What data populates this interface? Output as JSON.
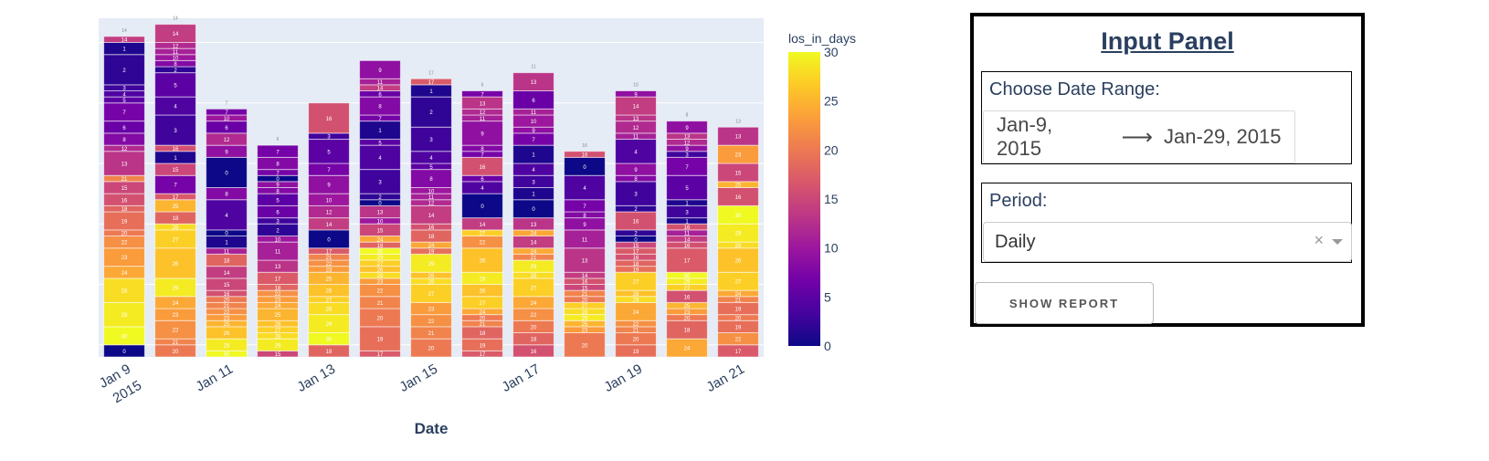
{
  "chart_data": {
    "type": "bar",
    "barmode": "stack",
    "title": "",
    "xlabel": "Date",
    "ylabel": "",
    "y_ticks_shown": false,
    "ylim": [
      0,
      56
    ],
    "grid": true,
    "colorbar": {
      "title": "los_in_days",
      "range": [
        0,
        30
      ],
      "ticks": [
        "0",
        "5",
        "10",
        "15",
        "20",
        "25",
        "30"
      ],
      "colorscale": "Plasma",
      "placement": "right"
    },
    "x_tick_labels": [
      {
        "label": "Jan 9",
        "sub": "2015",
        "index": 0
      },
      {
        "label": "Jan 11",
        "sub": "",
        "index": 2
      },
      {
        "label": "Jan 13",
        "sub": "",
        "index": 4
      },
      {
        "label": "Jan 15",
        "sub": "",
        "index": 6
      },
      {
        "label": "Jan 17",
        "sub": "",
        "index": 8
      },
      {
        "label": "Jan 19",
        "sub": "",
        "index": 10
      },
      {
        "label": "Jan 21",
        "sub": "",
        "index": 12
      }
    ],
    "categories": [
      "Jan 9",
      "Jan 10",
      "Jan 11",
      "Jan 12",
      "Jan 13",
      "Jan 14",
      "Jan 15",
      "Jan 16",
      "Jan 17",
      "Jan 18",
      "Jan 19",
      "Jan 20",
      "Jan 21"
    ],
    "bar_top_labels": [
      "14",
      "14",
      "7",
      "6",
      "",
      "",
      "17",
      "6",
      "11",
      "16",
      "10",
      "8",
      "13"
    ],
    "bars": [
      {
        "date": "Jan 9",
        "segments": [
          [
            0,
            2
          ],
          [
            30,
            3
          ],
          [
            29,
            4
          ],
          [
            28,
            4
          ],
          [
            24,
            2
          ],
          [
            23,
            3
          ],
          [
            22,
            2
          ],
          [
            20,
            1
          ],
          [
            19,
            3
          ],
          [
            18,
            1
          ],
          [
            16,
            2
          ],
          [
            15,
            2
          ],
          [
            21,
            1
          ],
          [
            13,
            4
          ],
          [
            12,
            1
          ],
          [
            8,
            2
          ],
          [
            6,
            2
          ],
          [
            7,
            3
          ],
          [
            5,
            1
          ],
          [
            4,
            1
          ],
          [
            3,
            1
          ],
          [
            2,
            5
          ],
          [
            1,
            2
          ],
          [
            14,
            1
          ]
        ]
      },
      {
        "date": "Jan 10",
        "segments": [
          [
            20,
            2
          ],
          [
            21,
            1
          ],
          [
            22,
            3
          ],
          [
            23,
            2
          ],
          [
            24,
            2
          ],
          [
            29,
            3
          ],
          [
            26,
            5
          ],
          [
            27,
            3
          ],
          [
            28,
            1
          ],
          [
            18,
            2
          ],
          [
            25,
            2
          ],
          [
            17,
            1
          ],
          [
            7,
            3
          ],
          [
            15,
            2
          ],
          [
            1,
            2
          ],
          [
            16,
            1
          ],
          [
            3,
            5
          ],
          [
            4,
            3
          ],
          [
            5,
            4
          ],
          [
            2,
            1
          ],
          [
            8,
            1
          ],
          [
            10,
            1
          ],
          [
            11,
            1
          ],
          [
            12,
            1
          ],
          [
            14,
            3
          ]
        ]
      },
      {
        "date": "Jan 11",
        "segments": [
          [
            30,
            1
          ],
          [
            29,
            2
          ],
          [
            26,
            2
          ],
          [
            25,
            1
          ],
          [
            23,
            1
          ],
          [
            22,
            1
          ],
          [
            21,
            1
          ],
          [
            20,
            1
          ],
          [
            16,
            1
          ],
          [
            15,
            2
          ],
          [
            14,
            2
          ],
          [
            18,
            2
          ],
          [
            11,
            1
          ],
          [
            1,
            2
          ],
          [
            0,
            1
          ],
          [
            4,
            5
          ],
          [
            8,
            2
          ],
          [
            0,
            5
          ],
          [
            9,
            2
          ],
          [
            12,
            2
          ],
          [
            6,
            2
          ],
          [
            10,
            1
          ],
          [
            7,
            1
          ]
        ]
      },
      {
        "date": "Jan 12",
        "segments": [
          [
            15,
            1
          ],
          [
            29,
            2
          ],
          [
            28,
            1
          ],
          [
            27,
            1
          ],
          [
            26,
            1
          ],
          [
            25,
            2
          ],
          [
            24,
            1
          ],
          [
            23,
            1
          ],
          [
            22,
            1
          ],
          [
            18,
            1
          ],
          [
            17,
            2
          ],
          [
            13,
            2
          ],
          [
            11,
            3
          ],
          [
            10,
            1
          ],
          [
            2,
            2
          ],
          [
            3,
            1
          ],
          [
            6,
            2
          ],
          [
            5,
            2
          ],
          [
            8,
            1
          ],
          [
            9,
            1
          ],
          [
            0,
            1
          ],
          [
            7,
            1
          ],
          [
            8,
            2
          ],
          [
            7,
            2
          ]
        ]
      },
      {
        "date": "Jan 13",
        "segments": [
          [
            18,
            2
          ],
          [
            30,
            2
          ],
          [
            29,
            3
          ],
          [
            28,
            2
          ],
          [
            27,
            1
          ],
          [
            26,
            2
          ],
          [
            25,
            2
          ],
          [
            23,
            1
          ],
          [
            22,
            1
          ],
          [
            21,
            1
          ],
          [
            17,
            1
          ],
          [
            0,
            3
          ],
          [
            14,
            2
          ],
          [
            12,
            2
          ],
          [
            10,
            2
          ],
          [
            9,
            3
          ],
          [
            7,
            2
          ],
          [
            5,
            4
          ],
          [
            3,
            1
          ],
          [
            16,
            5
          ]
        ]
      },
      {
        "date": "Jan 14",
        "segments": [
          [
            17,
            1
          ],
          [
            19,
            4
          ],
          [
            20,
            3
          ],
          [
            21,
            2
          ],
          [
            22,
            2
          ],
          [
            23,
            1
          ],
          [
            28,
            1
          ],
          [
            26,
            1
          ],
          [
            27,
            1
          ],
          [
            29,
            1
          ],
          [
            30,
            1
          ],
          [
            18,
            1
          ],
          [
            24,
            1
          ],
          [
            15,
            2
          ],
          [
            10,
            1
          ],
          [
            13,
            2
          ],
          [
            0,
            1
          ],
          [
            2,
            1
          ],
          [
            3,
            4
          ],
          [
            4,
            4
          ],
          [
            5,
            1
          ],
          [
            1,
            3
          ],
          [
            7,
            1
          ],
          [
            8,
            3
          ],
          [
            6,
            1
          ],
          [
            14,
            1
          ],
          [
            11,
            1
          ],
          [
            9,
            3
          ]
        ]
      },
      {
        "date": "Jan 15",
        "segments": [
          [
            20,
            3
          ],
          [
            21,
            2
          ],
          [
            22,
            2
          ],
          [
            23,
            2
          ],
          [
            27,
            3
          ],
          [
            28,
            1
          ],
          [
            26,
            1
          ],
          [
            29,
            3
          ],
          [
            19,
            1
          ],
          [
            24,
            1
          ],
          [
            18,
            2
          ],
          [
            16,
            1
          ],
          [
            14,
            3
          ],
          [
            12,
            1
          ],
          [
            11,
            1
          ],
          [
            10,
            1
          ],
          [
            8,
            3
          ],
          [
            5,
            1
          ],
          [
            4,
            2
          ],
          [
            3,
            4
          ],
          [
            2,
            5
          ],
          [
            1,
            2
          ],
          [
            17,
            1
          ]
        ]
      },
      {
        "date": "Jan 16",
        "segments": [
          [
            17,
            1
          ],
          [
            19,
            2
          ],
          [
            18,
            2
          ],
          [
            21,
            1
          ],
          [
            20,
            1
          ],
          [
            24,
            1
          ],
          [
            27,
            2
          ],
          [
            26,
            2
          ],
          [
            29,
            2
          ],
          [
            26,
            4
          ],
          [
            22,
            2
          ],
          [
            27,
            1
          ],
          [
            14,
            2
          ],
          [
            0,
            4
          ],
          [
            4,
            2
          ],
          [
            6,
            1
          ],
          [
            16,
            3
          ],
          [
            7,
            1
          ],
          [
            8,
            1
          ],
          [
            9,
            4
          ],
          [
            11,
            1
          ],
          [
            12,
            1
          ],
          [
            13,
            2
          ],
          [
            7,
            1
          ]
        ]
      },
      {
        "date": "Jan 17",
        "segments": [
          [
            16,
            2
          ],
          [
            18,
            2
          ],
          [
            20,
            2
          ],
          [
            22,
            2
          ],
          [
            24,
            2
          ],
          [
            27,
            3
          ],
          [
            28,
            1
          ],
          [
            29,
            2
          ],
          [
            21,
            1
          ],
          [
            24,
            1
          ],
          [
            14,
            2
          ],
          [
            24,
            1
          ],
          [
            13,
            2
          ],
          [
            0,
            3
          ],
          [
            1,
            2
          ],
          [
            3,
            2
          ],
          [
            4,
            2
          ],
          [
            1,
            3
          ],
          [
            7,
            2
          ],
          [
            9,
            1
          ],
          [
            10,
            2
          ],
          [
            11,
            1
          ],
          [
            6,
            3
          ],
          [
            13,
            3
          ]
        ]
      },
      {
        "date": "Jan 18",
        "segments": [
          [
            20,
            4
          ],
          [
            23,
            1
          ],
          [
            25,
            1
          ],
          [
            29,
            1
          ],
          [
            28,
            1
          ],
          [
            27,
            1
          ],
          [
            20,
            1
          ],
          [
            21,
            1
          ],
          [
            15,
            1
          ],
          [
            16,
            1
          ],
          [
            14,
            1
          ],
          [
            13,
            4
          ],
          [
            11,
            3
          ],
          [
            9,
            2
          ],
          [
            8,
            1
          ],
          [
            7,
            2
          ],
          [
            4,
            4
          ],
          [
            0,
            3
          ],
          [
            16,
            1
          ]
        ]
      },
      {
        "date": "Jan 19",
        "segments": [
          [
            19,
            2
          ],
          [
            20,
            2
          ],
          [
            21,
            1
          ],
          [
            22,
            1
          ],
          [
            24,
            3
          ],
          [
            28,
            1
          ],
          [
            26,
            1
          ],
          [
            27,
            3
          ],
          [
            19,
            1
          ],
          [
            18,
            1
          ],
          [
            16,
            1
          ],
          [
            17,
            1
          ],
          [
            15,
            1
          ],
          [
            0,
            1
          ],
          [
            2,
            1
          ],
          [
            16,
            3
          ],
          [
            2,
            1
          ],
          [
            3,
            4
          ],
          [
            8,
            1
          ],
          [
            9,
            2
          ],
          [
            4,
            4
          ],
          [
            11,
            1
          ],
          [
            12,
            2
          ],
          [
            13,
            1
          ],
          [
            14,
            3
          ],
          [
            9,
            1
          ]
        ]
      },
      {
        "date": "Jan 20",
        "segments": [
          [
            24,
            3
          ],
          [
            18,
            3
          ],
          [
            20,
            1
          ],
          [
            23,
            1
          ],
          [
            25,
            1
          ],
          [
            16,
            2
          ],
          [
            27,
            1
          ],
          [
            29,
            1
          ],
          [
            30,
            1
          ],
          [
            17,
            4
          ],
          [
            16,
            1
          ],
          [
            14,
            1
          ],
          [
            11,
            1
          ],
          [
            16,
            1
          ],
          [
            1,
            1
          ],
          [
            3,
            2
          ],
          [
            1,
            1
          ],
          [
            5,
            4
          ],
          [
            7,
            3
          ],
          [
            3,
            1
          ],
          [
            9,
            1
          ],
          [
            12,
            1
          ],
          [
            13,
            1
          ],
          [
            9,
            2
          ]
        ]
      },
      {
        "date": "Jan 21",
        "segments": [
          [
            17,
            2
          ],
          [
            22,
            2
          ],
          [
            19,
            2
          ],
          [
            20,
            1
          ],
          [
            19,
            2
          ],
          [
            21,
            1
          ],
          [
            24,
            1
          ],
          [
            27,
            3
          ],
          [
            26,
            4
          ],
          [
            28,
            1
          ],
          [
            29,
            3
          ],
          [
            30,
            3
          ],
          [
            16,
            3
          ],
          [
            25,
            1
          ],
          [
            15,
            3
          ],
          [
            23,
            3
          ],
          [
            13,
            3
          ]
        ]
      }
    ]
  },
  "panel": {
    "title": "Input Panel",
    "date_range": {
      "label": "Choose Date Range:",
      "start": "Jan-9, 2015",
      "arrow": "⟶",
      "end": "Jan-29, 2015"
    },
    "period": {
      "label": "Period:",
      "value": "Daily",
      "clear_icon": "×"
    },
    "show_report_label": "SHOW REPORT"
  }
}
